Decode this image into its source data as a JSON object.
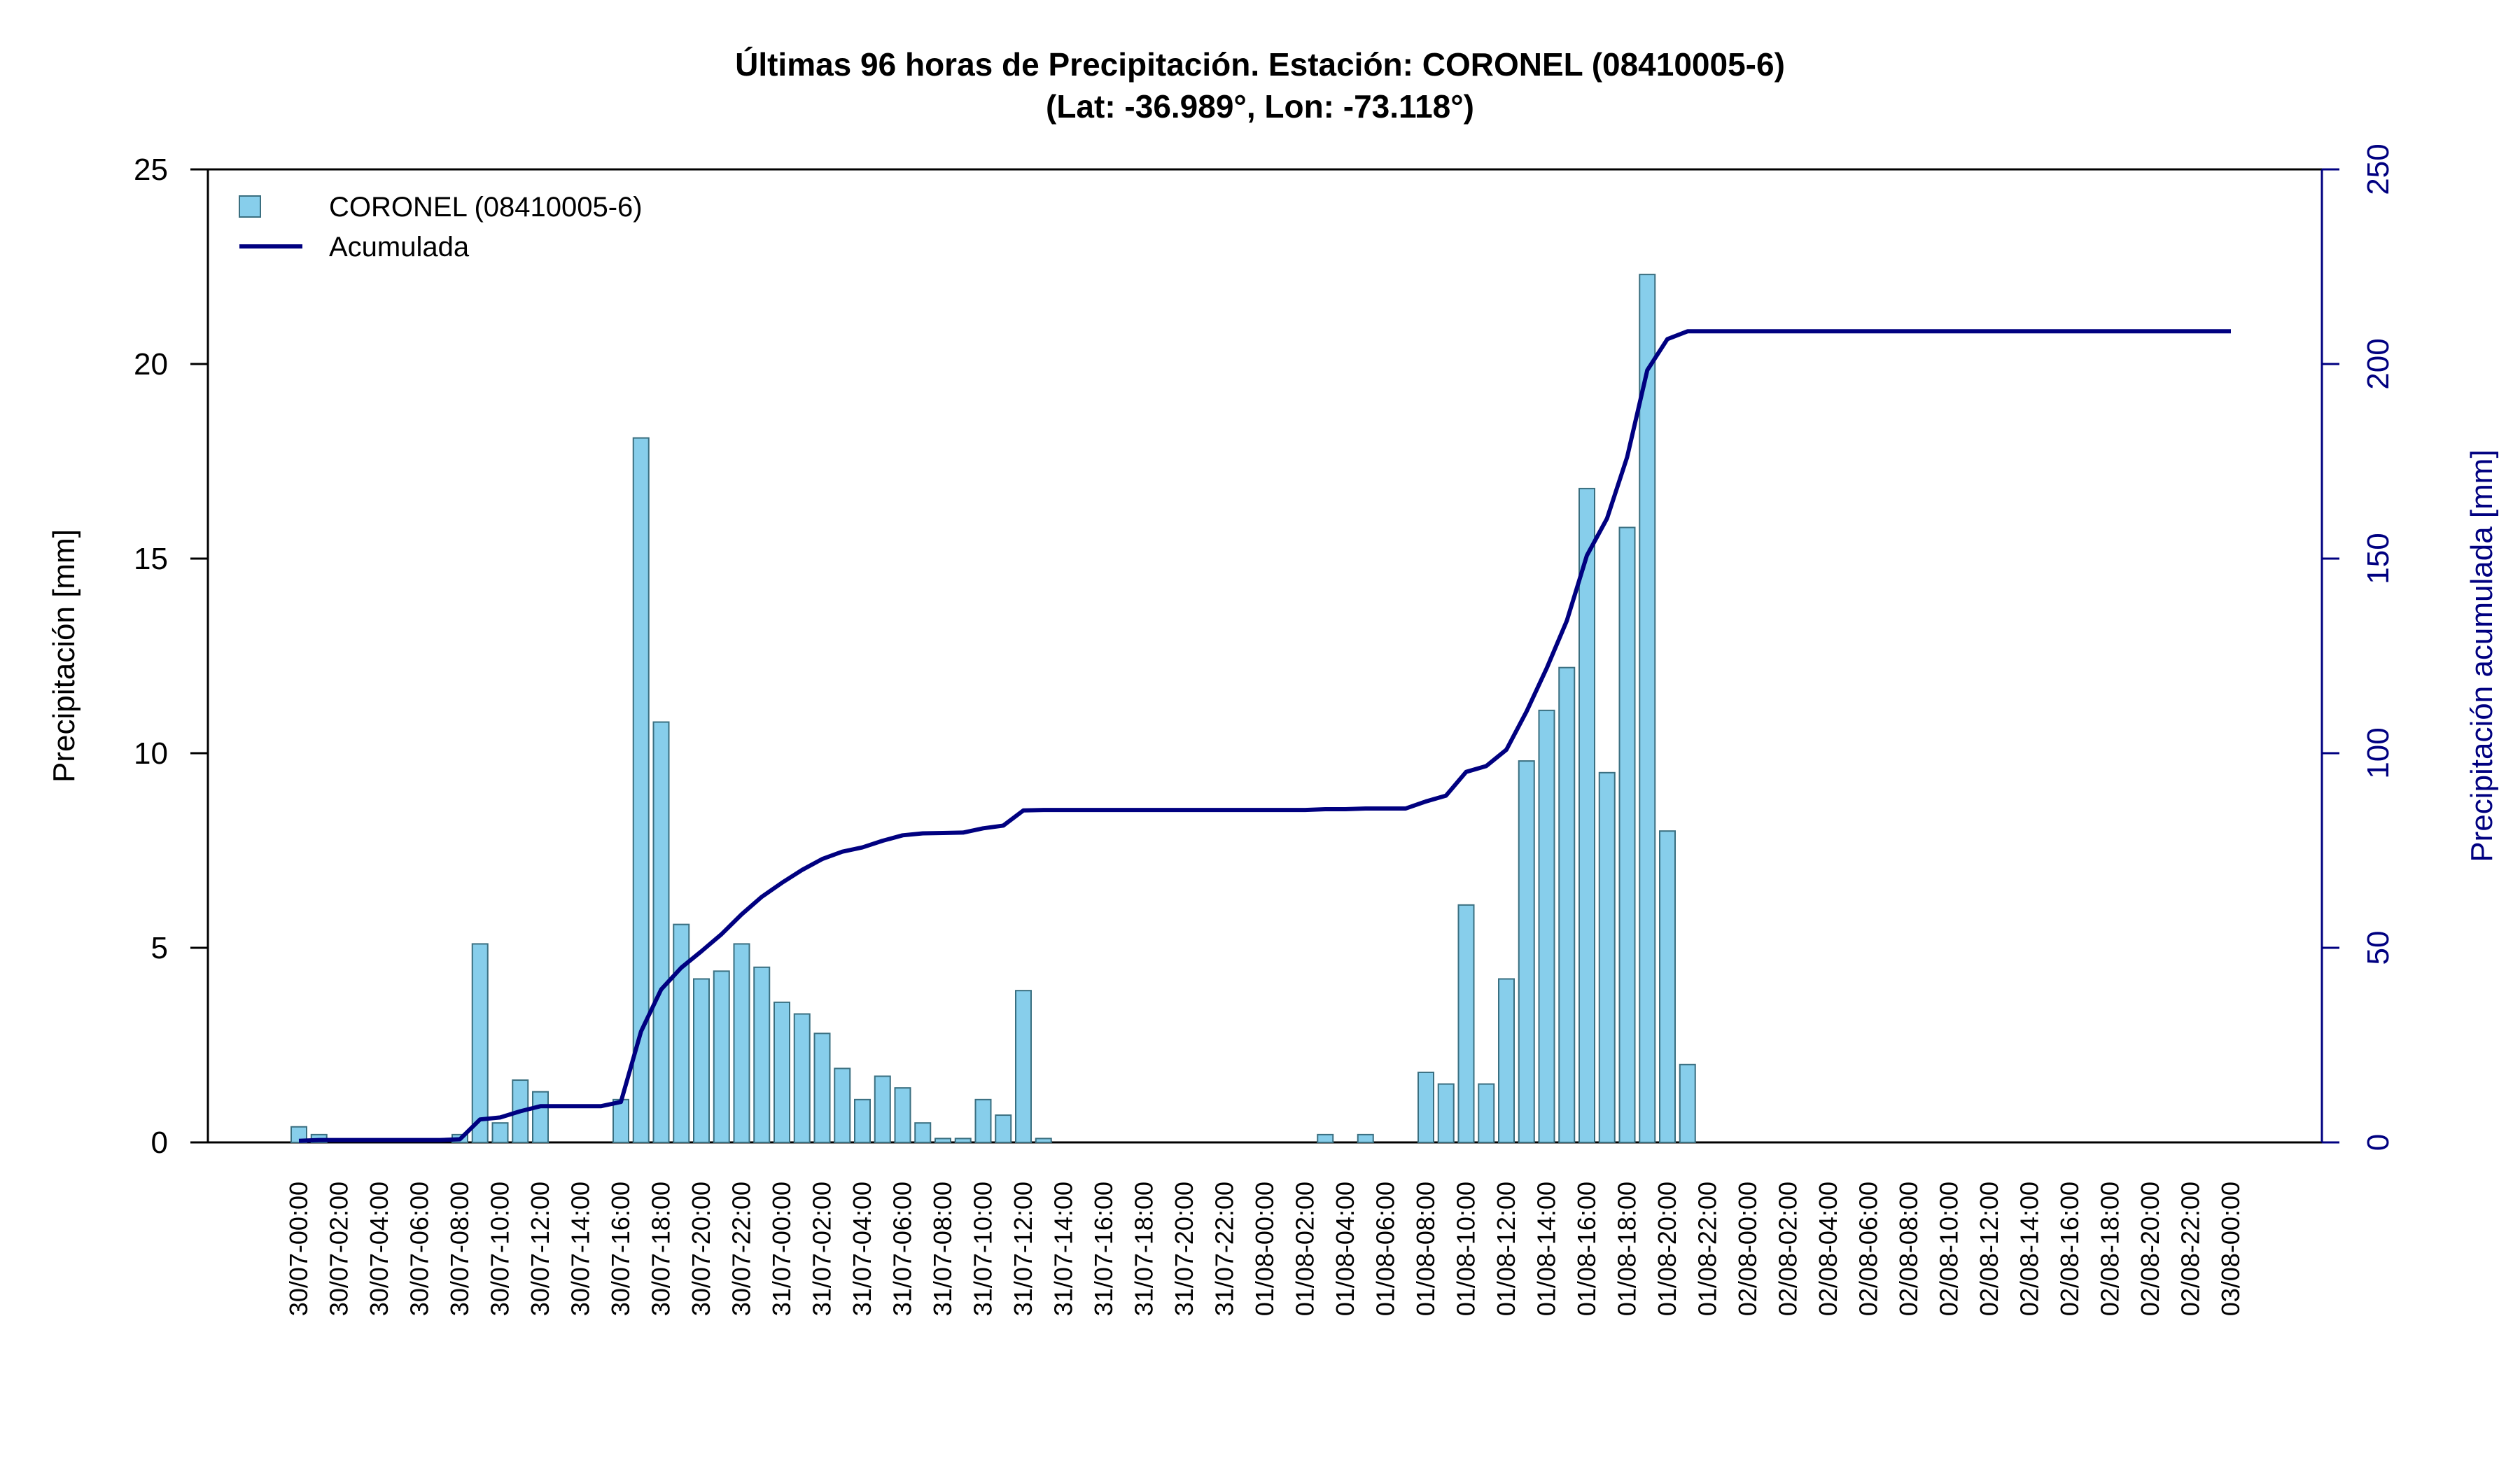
{
  "chart_data": {
    "type": "bar",
    "title": "Últimas 96 horas de Precipitación. Estación: CORONEL (08410005-6)",
    "subtitle": "(Lat: -36.989°, Lon: -73.118°)",
    "ylabel": "Precipitación [mm]",
    "ylabel_right": "Precipitación acumulada [mm]",
    "ylim": [
      0,
      25
    ],
    "ylim_right": [
      0,
      250
    ],
    "yticks": [
      "0",
      "5",
      "10",
      "15",
      "20",
      "25"
    ],
    "yticks_right": [
      "0",
      "50",
      "100",
      "150",
      "200",
      "250"
    ],
    "grid": false,
    "legend_position": "top-left",
    "colors": {
      "bars": "#87CEEB",
      "bar_border": "#3a6f80",
      "line": "#000080",
      "right_axis": "#000080"
    },
    "legend": [
      {
        "name": "CORONEL (08410005-6)",
        "kind": "bar"
      },
      {
        "name": "Acumulada",
        "kind": "line"
      }
    ],
    "x_labels": [
      "30/07-00:00",
      "30/07-02:00",
      "30/07-04:00",
      "30/07-06:00",
      "30/07-08:00",
      "30/07-10:00",
      "30/07-12:00",
      "30/07-14:00",
      "30/07-16:00",
      "30/07-18:00",
      "30/07-20:00",
      "30/07-22:00",
      "31/07-00:00",
      "31/07-02:00",
      "31/07-04:00",
      "31/07-06:00",
      "31/07-08:00",
      "31/07-10:00",
      "31/07-12:00",
      "31/07-14:00",
      "31/07-16:00",
      "31/07-18:00",
      "31/07-20:00",
      "31/07-22:00",
      "01/08-00:00",
      "01/08-02:00",
      "01/08-04:00",
      "01/08-06:00",
      "01/08-08:00",
      "01/08-10:00",
      "01/08-12:00",
      "01/08-14:00",
      "01/08-16:00",
      "01/08-18:00",
      "01/08-20:00",
      "01/08-22:00",
      "02/08-00:00",
      "02/08-02:00",
      "02/08-04:00",
      "02/08-06:00",
      "02/08-08:00",
      "02/08-10:00",
      "02/08-12:00",
      "02/08-14:00",
      "02/08-16:00",
      "02/08-18:00",
      "02/08-20:00",
      "02/08-22:00",
      "03/08-00:00"
    ],
    "series": [
      {
        "name": "CORONEL (08410005-6)",
        "type": "bar",
        "values": [
          0.4,
          0.2,
          0,
          0,
          0,
          0,
          0,
          0,
          0.2,
          5.1,
          0.5,
          1.6,
          1.3,
          0,
          0,
          0,
          1.1,
          18.1,
          10.8,
          5.6,
          4.2,
          4.4,
          5.1,
          4.5,
          3.6,
          3.3,
          2.8,
          1.9,
          1.1,
          1.7,
          1.4,
          0.5,
          0.1,
          0.1,
          1.1,
          0.7,
          3.9,
          0.1,
          0,
          0,
          0,
          0,
          0,
          0,
          0,
          0,
          0,
          0,
          0,
          0,
          0,
          0.2,
          0,
          0.2,
          0,
          0,
          1.8,
          1.5,
          6.1,
          1.5,
          4.2,
          9.8,
          11.1,
          12.2,
          16.8,
          9.5,
          15.8,
          22.3,
          8.0,
          2.0
        ]
      },
      {
        "name": "Acumulada",
        "type": "line",
        "values": [
          0.4,
          0.6,
          0.6,
          0.6,
          0.6,
          0.6,
          0.6,
          0.6,
          0.8,
          5.9,
          6.4,
          8.0,
          9.3,
          9.3,
          9.3,
          9.3,
          10.4,
          28.5,
          39.3,
          44.9,
          49.1,
          53.5,
          58.6,
          63.1,
          66.7,
          70.0,
          72.8,
          74.7,
          75.8,
          77.5,
          78.9,
          79.4,
          79.5,
          79.6,
          80.7,
          81.4,
          85.3,
          85.4,
          85.4,
          85.4,
          85.4,
          85.4,
          85.4,
          85.4,
          85.4,
          85.4,
          85.4,
          85.4,
          85.4,
          85.4,
          85.4,
          85.6,
          85.6,
          85.8,
          85.8,
          85.8,
          87.6,
          89.1,
          95.2,
          96.7,
          100.9,
          110.7,
          121.8,
          134.0,
          150.8,
          160.3,
          176.1,
          198.4,
          206.4,
          208.4,
          208.4,
          208.4,
          208.4,
          208.4,
          208.4,
          208.4,
          208.4,
          208.4,
          208.4,
          208.4,
          208.4,
          208.4,
          208.4,
          208.4,
          208.4,
          208.4,
          208.4,
          208.4,
          208.4,
          208.4,
          208.4,
          208.4,
          208.4,
          208.4,
          208.4,
          208.4,
          208.4
        ]
      }
    ]
  }
}
